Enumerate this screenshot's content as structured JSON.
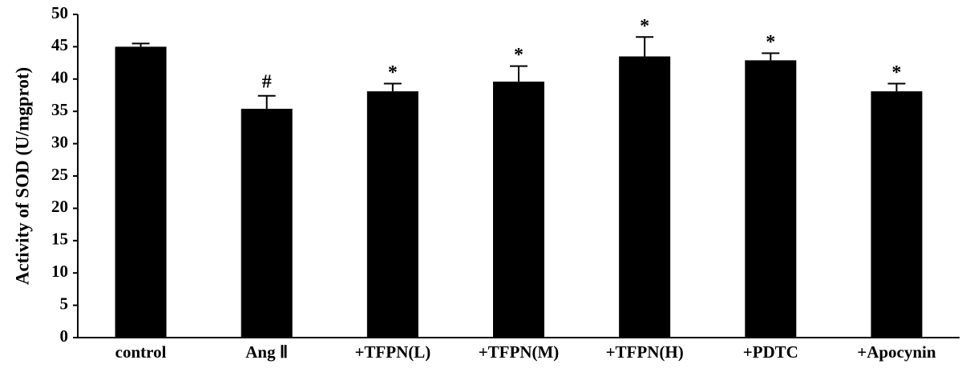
{
  "chart_data": {
    "type": "bar",
    "ylabel": "Activity of SOD (U/mgprot)",
    "categories": [
      "control",
      "Ang Ⅱ",
      "+TFPN(L)",
      "+TFPN(M)",
      "+TFPN(H)",
      "+PDTC",
      "+Apocynin"
    ],
    "values": [
      45.0,
      35.4,
      38.1,
      39.6,
      43.5,
      42.9,
      38.1
    ],
    "errors": [
      0.5,
      2.0,
      1.2,
      2.4,
      3.0,
      1.1,
      1.2
    ],
    "annotations": [
      null,
      "#",
      "*",
      "*",
      "*",
      "*",
      "*"
    ],
    "color": "#000000",
    "ylim": [
      0,
      50
    ],
    "yticks": [
      0,
      5,
      10,
      15,
      20,
      25,
      30,
      35,
      40,
      45,
      50
    ],
    "grid": false
  }
}
